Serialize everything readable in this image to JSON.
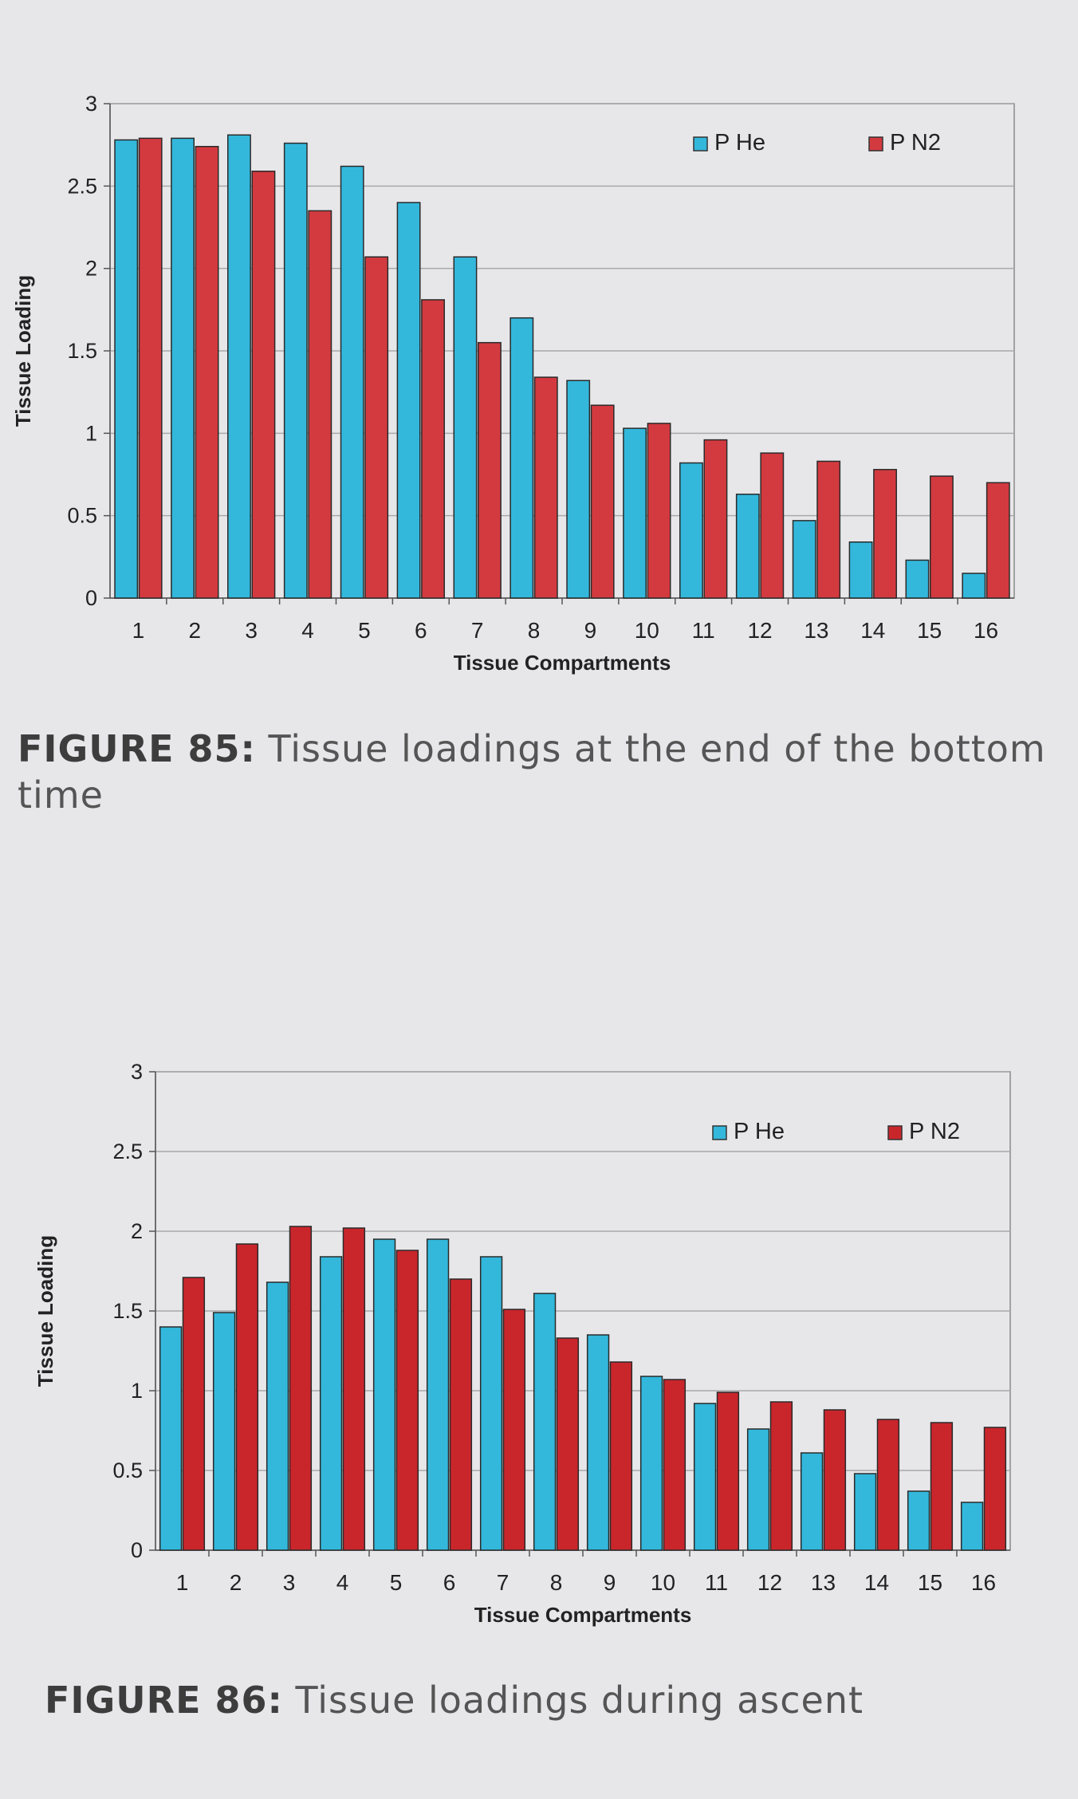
{
  "chart_data": [
    {
      "type": "bar",
      "categories": [
        "1",
        "2",
        "3",
        "4",
        "5",
        "6",
        "7",
        "8",
        "9",
        "10",
        "11",
        "12",
        "13",
        "14",
        "15",
        "16"
      ],
      "series": [
        {
          "name": "P He",
          "color": "#33b8dc",
          "values": [
            2.78,
            2.79,
            2.81,
            2.76,
            2.62,
            2.4,
            2.07,
            1.7,
            1.32,
            1.03,
            0.82,
            0.63,
            0.47,
            0.34,
            0.23,
            0.15
          ]
        },
        {
          "name": "P N2",
          "color": "#d33a3f",
          "values": [
            2.79,
            2.74,
            2.59,
            2.35,
            2.07,
            1.81,
            1.55,
            1.34,
            1.17,
            1.06,
            0.96,
            0.88,
            0.83,
            0.78,
            0.74,
            0.7
          ]
        }
      ],
      "xlabel": "Tissue Compartments",
      "ylabel": "Tissue Loading",
      "ylim": [
        0,
        3
      ],
      "yticks": [
        "0",
        "0.5",
        "1",
        "1.5",
        "2",
        "2.5",
        "3"
      ],
      "grid": true,
      "legend": "top-right"
    },
    {
      "type": "bar",
      "categories": [
        "1",
        "2",
        "3",
        "4",
        "5",
        "6",
        "7",
        "8",
        "9",
        "10",
        "11",
        "12",
        "13",
        "14",
        "15",
        "16"
      ],
      "series": [
        {
          "name": "P He",
          "color": "#33b8dc",
          "values": [
            1.4,
            1.49,
            1.68,
            1.84,
            1.95,
            1.95,
            1.84,
            1.61,
            1.35,
            1.09,
            0.92,
            0.76,
            0.61,
            0.48,
            0.37,
            0.3
          ]
        },
        {
          "name": "P N2",
          "color": "#c9262c",
          "values": [
            1.71,
            1.92,
            2.03,
            2.02,
            1.88,
            1.7,
            1.51,
            1.33,
            1.18,
            1.07,
            0.99,
            0.93,
            0.88,
            0.82,
            0.8,
            0.77
          ]
        }
      ],
      "xlabel": "Tissue Compartments",
      "ylabel": "Tissue Loading",
      "ylim": [
        0,
        3
      ],
      "yticks": [
        "0",
        "0.5",
        "1",
        "1.5",
        "2",
        "2.5",
        "3"
      ],
      "grid": true,
      "legend": "top-right"
    }
  ],
  "captions": [
    {
      "label": "FIGURE 85:",
      "text": " Tissue loadings at the end of the bottom time"
    },
    {
      "label": "FIGURE 86:",
      "text": " Tissue loadings during ascent"
    }
  ]
}
